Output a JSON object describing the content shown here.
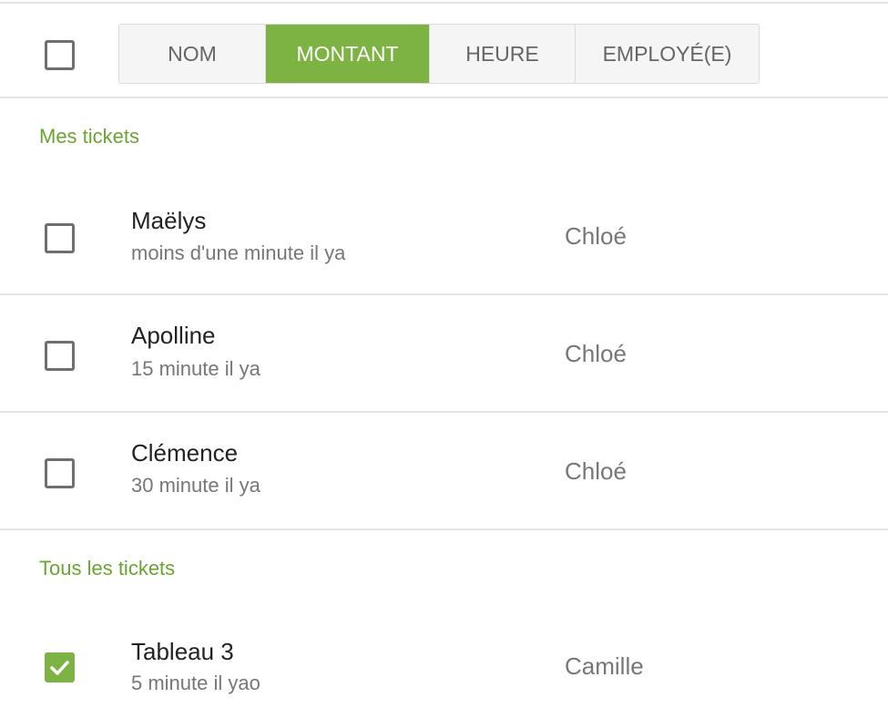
{
  "header": {
    "select_all_checked": false,
    "sort_options": [
      {
        "label": "NOM",
        "active": false
      },
      {
        "label": "MONTANT",
        "active": true
      },
      {
        "label": "HEURE",
        "active": false
      },
      {
        "label": "EMPLOYÉ(E)",
        "active": false
      }
    ]
  },
  "colors": {
    "accent": "#7cb342",
    "section": "#6aa532"
  },
  "sections": [
    {
      "title": "Mes tickets",
      "tickets": [
        {
          "name": "Maëlys",
          "time": "moins d'une minute il ya",
          "employee": "Chloé",
          "checked": false
        },
        {
          "name": "Apolline",
          "time": "15 minute il ya",
          "employee": "Chloé",
          "checked": false
        },
        {
          "name": "Clémence",
          "time": "30 minute il ya",
          "employee": "Chloé",
          "checked": false
        }
      ]
    },
    {
      "title": "Tous les tickets",
      "tickets": [
        {
          "name": "Tableau 3",
          "time": "5 minute il yao",
          "employee": "Camille",
          "checked": true
        }
      ]
    }
  ]
}
